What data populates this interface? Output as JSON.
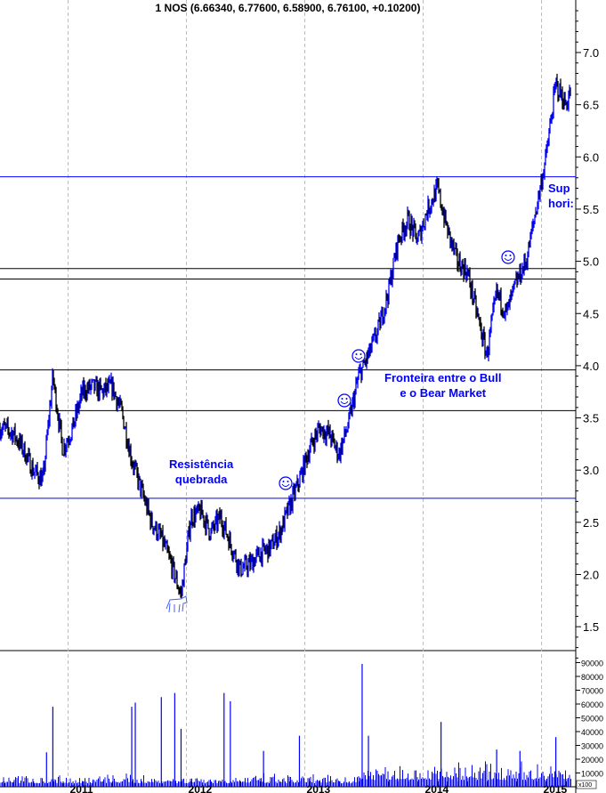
{
  "chart_data": [
    {
      "type": "line",
      "title": "1 NOS (6.66340, 6.77600, 6.58900, 6.76100, +0.10200)",
      "ylim": [
        1.2,
        7.4
      ],
      "yticks": [
        "1.5",
        "2.0",
        "2.5",
        "3.0",
        "3.5",
        "4.0",
        "4.5",
        "5.0",
        "5.5",
        "6.0",
        "6.5",
        "7.0"
      ],
      "xticks": [
        "2011",
        "2012",
        "2013",
        "2014",
        "2015"
      ],
      "grid": "vertical dashed at year starts",
      "series_color_up": "#0000ff",
      "series_color_down": "#000000",
      "x": [
        "2010-06",
        "2010-07",
        "2010-08",
        "2010-09",
        "2010-10",
        "2010-11",
        "2010-12",
        "2011-01",
        "2011-02",
        "2011-03",
        "2011-04",
        "2011-05",
        "2011-06",
        "2011-07",
        "2011-08",
        "2011-09",
        "2011-10",
        "2011-11",
        "2011-12",
        "2012-01",
        "2012-02",
        "2012-03",
        "2012-04",
        "2012-05",
        "2012-06",
        "2012-07",
        "2012-08",
        "2012-09",
        "2012-10",
        "2012-11",
        "2012-12",
        "2013-01",
        "2013-02",
        "2013-03",
        "2013-04",
        "2013-05",
        "2013-06",
        "2013-07",
        "2013-08",
        "2013-09",
        "2013-10",
        "2013-11",
        "2013-12",
        "2014-01",
        "2014-02",
        "2014-03",
        "2014-04",
        "2014-05",
        "2014-06",
        "2014-07",
        "2014-08",
        "2014-09",
        "2014-10",
        "2014-11",
        "2014-12",
        "2015-01",
        "2015-02",
        "2015-03",
        "2015-04"
      ],
      "values": [
        3.4,
        3.35,
        3.2,
        3.0,
        2.9,
        3.9,
        3.2,
        3.4,
        3.75,
        3.8,
        3.75,
        3.8,
        3.55,
        3.1,
        2.8,
        2.5,
        2.35,
        2.1,
        1.8,
        2.55,
        2.6,
        2.4,
        2.55,
        2.3,
        2.05,
        2.1,
        2.2,
        2.25,
        2.4,
        2.65,
        2.9,
        3.2,
        3.4,
        3.35,
        3.15,
        3.45,
        3.9,
        4.1,
        4.35,
        4.7,
        5.2,
        5.4,
        5.2,
        5.5,
        5.7,
        5.3,
        5.0,
        4.9,
        4.5,
        4.1,
        4.7,
        4.5,
        4.8,
        5.0,
        5.5,
        6.0,
        6.7,
        6.5,
        6.75
      ],
      "horizontal_lines": [
        {
          "value": 5.81,
          "color": "#0000ff"
        },
        {
          "value": 4.93,
          "color": "#000000"
        },
        {
          "value": 4.83,
          "color": "#000000"
        },
        {
          "value": 3.96,
          "color": "#000000"
        },
        {
          "value": 3.57,
          "color": "#000000"
        },
        {
          "value": 2.73,
          "color": "#0000ff"
        }
      ],
      "annotations": [
        {
          "text": "Resistência",
          "text2": "quebrada"
        },
        {
          "text": "Fronteira entre o Bull",
          "text2": "e o Bear Market"
        },
        {
          "text": "Sup",
          "text2": "hori:"
        }
      ],
      "markers": [
        {
          "icon": "smiley-icon",
          "date": "2012-12"
        },
        {
          "icon": "smiley-icon",
          "date": "2013-04"
        },
        {
          "icon": "smiley-icon",
          "date": "2013-06"
        },
        {
          "icon": "smiley-icon",
          "date": "2014-09"
        },
        {
          "icon": "bull-icon",
          "date": "2011-12"
        }
      ]
    },
    {
      "type": "bar",
      "ylim": [
        0,
        95000
      ],
      "yticks": [
        "10000",
        "20000",
        "30000",
        "40000",
        "50000",
        "60000",
        "70000",
        "80000",
        "90000"
      ],
      "unit": "x100",
      "color": "#0000ff",
      "spikes": [
        {
          "x": "2010-11",
          "v": 58000
        },
        {
          "x": "2010-10",
          "v": 25000
        },
        {
          "x": "2011-07",
          "v": 58000
        },
        {
          "x": "2011-07",
          "v": 61000
        },
        {
          "x": "2011-10",
          "v": 65000
        },
        {
          "x": "2011-11",
          "v": 68000
        },
        {
          "x": "2011-12",
          "v": 42000
        },
        {
          "x": "2012-04",
          "v": 68000
        },
        {
          "x": "2012-05",
          "v": 62000
        },
        {
          "x": "2012-08",
          "v": 26000
        },
        {
          "x": "2012-12",
          "v": 37000
        },
        {
          "x": "2013-06",
          "v": 89000
        },
        {
          "x": "2013-07",
          "v": 37000
        },
        {
          "x": "2014-02",
          "v": 47000
        },
        {
          "x": "2014-08",
          "v": 27000
        },
        {
          "x": "2014-10",
          "v": 26000
        },
        {
          "x": "2015-02",
          "v": 36000
        }
      ]
    }
  ]
}
